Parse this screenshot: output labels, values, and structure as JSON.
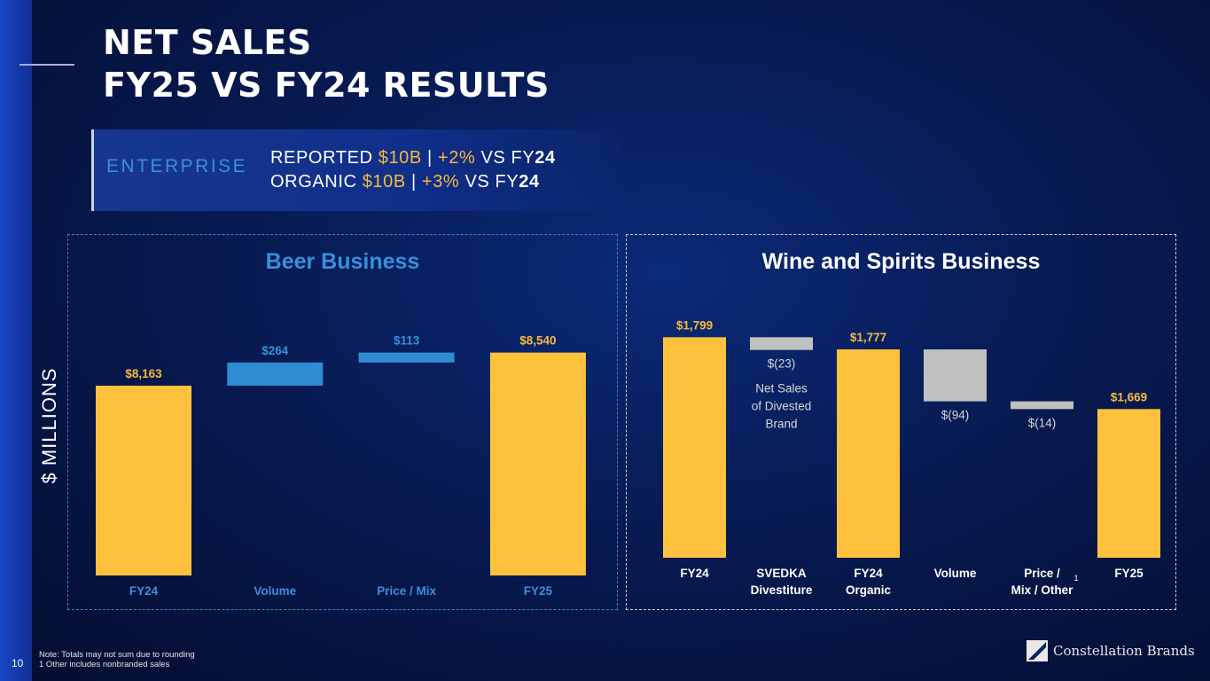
{
  "title": {
    "line1": "NET SALES",
    "line2": "FY25 VS FY24 RESULTS"
  },
  "enterprise": {
    "label": "ENTERPRISE",
    "reported": {
      "prefix": "REPORTED ",
      "amount": "$10B",
      "sep": " | ",
      "change": "+2%",
      "suffix": " VS FY",
      "year": "24"
    },
    "organic": {
      "prefix": "ORGANIC ",
      "amount": "$10B",
      "sep": "  | ",
      "change": "+3%",
      "suffix": " VS FY",
      "year": "24"
    }
  },
  "y_axis_label": "$ MILLIONS",
  "colors": {
    "total": "#fec13e",
    "increase": "#2f8bd2",
    "decrease": "#c0c0c0",
    "beer_accent": "#3a8fd9",
    "highlight": "#f8b93c"
  },
  "chart_data": [
    {
      "type": "waterfall",
      "title": "Beer Business",
      "ylabel": "$ MILLIONS",
      "ylim": [
        6000,
        8900
      ],
      "categories": [
        "FY24",
        "Volume",
        "Price / Mix",
        "FY25"
      ],
      "values": [
        8163,
        264,
        113,
        8540
      ],
      "kinds": [
        "total",
        "delta",
        "delta",
        "total"
      ],
      "labels": [
        "$8,163",
        "$264",
        "$113",
        "$8,540"
      ]
    },
    {
      "type": "waterfall",
      "title": "Wine and Spirits Business",
      "ylabel": "$ MILLIONS",
      "ylim": [
        1400,
        1830
      ],
      "categories": [
        "FY24",
        "SVEDKA Divestiture",
        "FY24 Organic",
        "Volume",
        "Price / Mix / Other",
        "FY25"
      ],
      "category_lines": [
        [
          "FY24"
        ],
        [
          "SVEDKA",
          "Divestiture"
        ],
        [
          "FY24",
          "Organic"
        ],
        [
          "Volume"
        ],
        [
          "Price /",
          "Mix / Other"
        ],
        [
          "FY25"
        ]
      ],
      "category_superscripts": [
        "",
        "",
        "",
        "",
        "1",
        ""
      ],
      "values": [
        1799,
        -23,
        1777,
        -94,
        -14,
        1669
      ],
      "kinds": [
        "total",
        "delta",
        "total",
        "delta",
        "delta",
        "total"
      ],
      "labels": [
        "$1,799",
        "$(23)",
        "$1,777",
        "$(94)",
        "$(14)",
        "$1,669"
      ],
      "annotations": [
        {
          "category": "SVEDKA Divestiture",
          "lines": [
            "Net Sales",
            "of Divested",
            "Brand"
          ]
        }
      ]
    }
  ],
  "footnotes": {
    "note": "Note: Totals may not sum due to rounding",
    "one": "1 Other includes nonbranded sales"
  },
  "page_number": "10",
  "logo": {
    "name": "Constellation Brands"
  }
}
